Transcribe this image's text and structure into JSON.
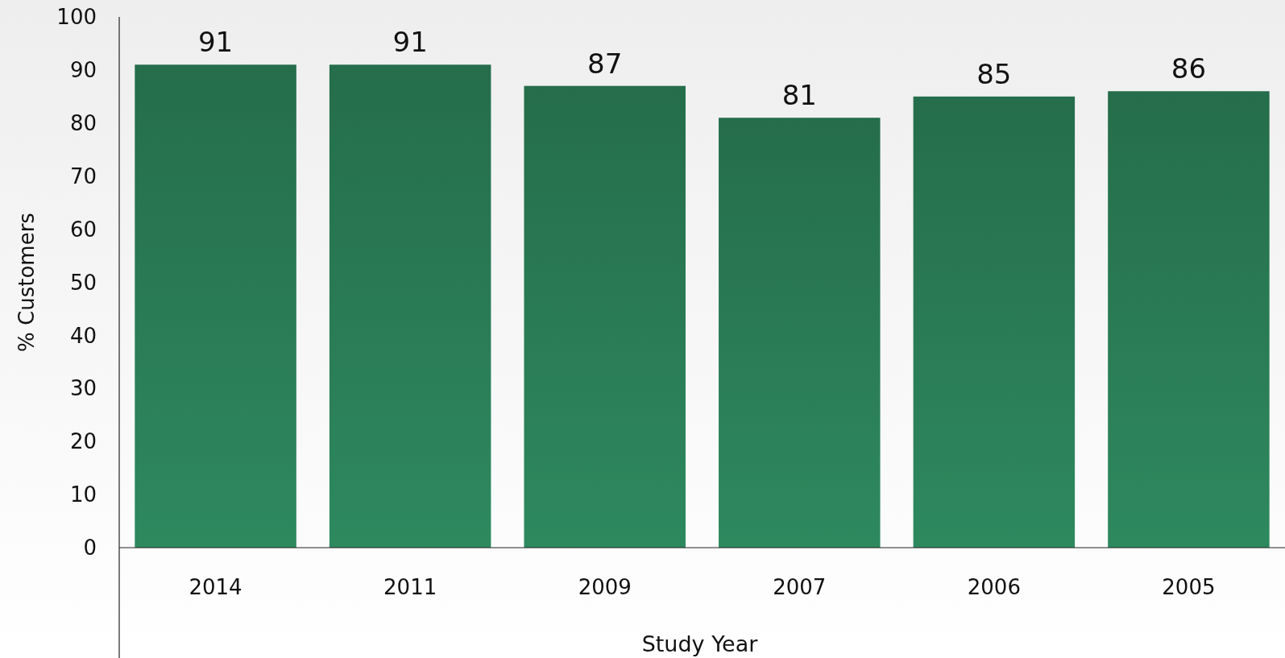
{
  "chart_data": {
    "type": "bar",
    "xlabel": "Study Year",
    "ylabel": "% Customers",
    "categories": [
      "2014",
      "2011",
      "2009",
      "2007",
      "2006",
      "2005"
    ],
    "values": [
      91,
      91,
      87,
      81,
      85,
      86
    ],
    "color": "#2b8058",
    "ylim": [
      0,
      100
    ],
    "yticks": [
      0,
      10,
      20,
      30,
      40,
      50,
      60,
      70,
      80,
      90,
      100
    ],
    "data_labels": true
  }
}
